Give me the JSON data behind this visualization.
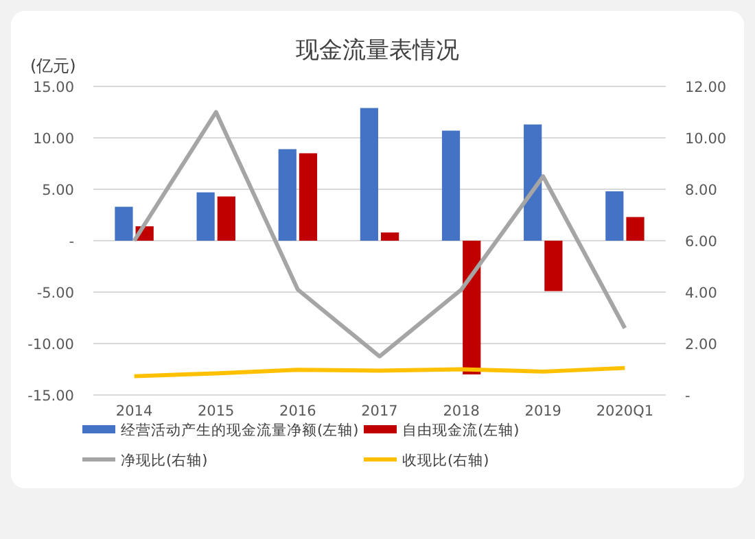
{
  "chart_data": {
    "type": "bar",
    "title": "现金流量表情况",
    "ylabel": "(亿元)",
    "categories": [
      "2014",
      "2015",
      "2016",
      "2017",
      "2018",
      "2019",
      "2020Q1"
    ],
    "series": [
      {
        "name": "经营活动产生的现金流量净额(左轴)",
        "color": "#4472c4",
        "values": [
          3.3,
          4.7,
          8.9,
          12.9,
          10.7,
          11.3,
          4.8
        ]
      },
      {
        "name": "自由现金流(左轴)",
        "color": "#c00000",
        "values": [
          1.4,
          4.3,
          8.5,
          0.8,
          -13.0,
          -4.9,
          2.3
        ]
      },
      {
        "name": "净现比(右轴)",
        "type": "line",
        "axis": "y2",
        "color": "#a5a5a5",
        "values": [
          6.0,
          11.0,
          4.1,
          1.5,
          4.1,
          8.5,
          2.6
        ]
      },
      {
        "name": "收现比(右轴)",
        "type": "line",
        "axis": "y2",
        "color": "#ffc000",
        "values": [
          0.73,
          0.84,
          0.98,
          0.95,
          1.0,
          0.91,
          1.05
        ]
      }
    ],
    "ylim": [
      -15,
      15
    ],
    "yticks": [
      {
        "value": -15,
        "label": "-15.00"
      },
      {
        "value": -10,
        "label": "-10.00"
      },
      {
        "value": -5,
        "label": "-5.00"
      },
      {
        "value": 0,
        "label": "-"
      },
      {
        "value": 5,
        "label": "5.00"
      },
      {
        "value": 10,
        "label": "10.00"
      },
      {
        "value": 15,
        "label": "15.00"
      }
    ],
    "y2lim": [
      0,
      12
    ],
    "y2ticks": [
      {
        "value": 0,
        "label": "-"
      },
      {
        "value": 2,
        "label": "2.00"
      },
      {
        "value": 4,
        "label": "4.00"
      },
      {
        "value": 6,
        "label": "6.00"
      },
      {
        "value": 8,
        "label": "8.00"
      },
      {
        "value": 10,
        "label": "10.00"
      },
      {
        "value": 12,
        "label": "12.00"
      }
    ],
    "grid": "y",
    "legend": "bottom",
    "marker": "none",
    "line_style": "solid"
  }
}
